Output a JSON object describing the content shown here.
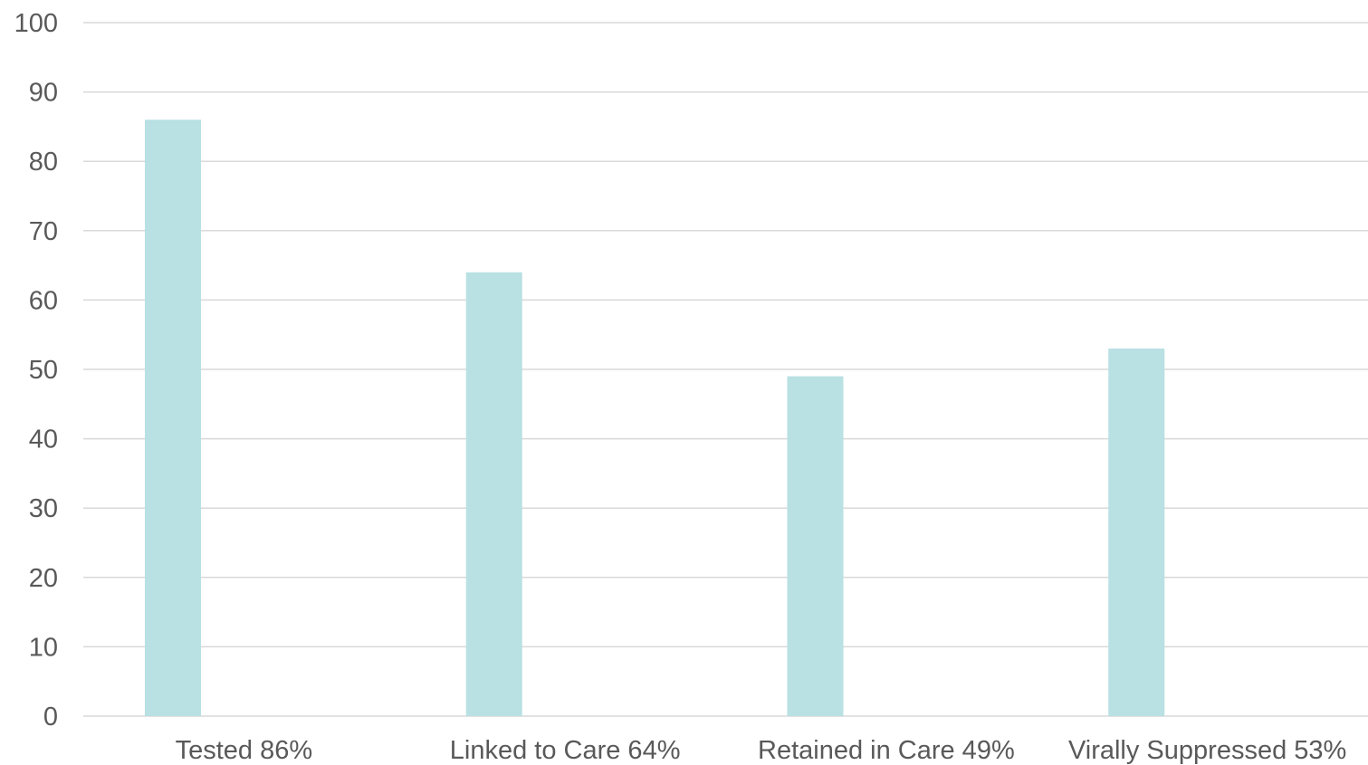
{
  "chart_data": {
    "type": "bar",
    "categories": [
      "Tested 86%",
      "Linked to Care 64%",
      "Retained in Care 49%",
      "Virally Suppressed 53%"
    ],
    "values": [
      86,
      64,
      49,
      53
    ],
    "yticks": [
      0,
      10,
      20,
      30,
      40,
      50,
      60,
      70,
      80,
      90,
      100
    ],
    "ylim": [
      0,
      100
    ],
    "grid": true,
    "legend": "none",
    "bar_color": "#b9e0e3",
    "grid_color": "#d9d9d9",
    "text_color": "#595959"
  }
}
